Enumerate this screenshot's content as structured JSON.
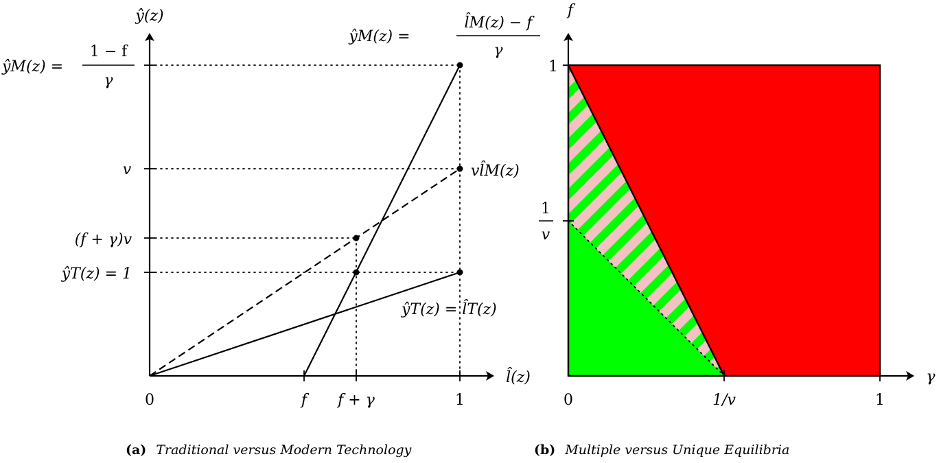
{
  "panel_a": {
    "caption_tag": "(a)",
    "caption_text": "Traditional versus Modern Technology",
    "y_axis_label": "ŷ(z)",
    "x_axis_label": "l̂(z)",
    "x_ticks": [
      "0",
      "f",
      "f + γ",
      "1"
    ],
    "y_labels": {
      "top_lhs": "ŷM(z) =",
      "top_num": "1 − f",
      "top_den": "γ",
      "v": "v",
      "fgv": "(f + γ)v",
      "yt": "ŷT(z) = 1"
    },
    "curve_labels": {
      "modern_lhs": "ŷM(z) =",
      "modern_num": "l̂M(z) − f",
      "modern_den": "γ",
      "vl": "vl̂M(z)",
      "trad": "ŷT(z) = l̂T(z)"
    }
  },
  "panel_b": {
    "caption_tag": "(b)",
    "caption_text": "Multiple versus Unique Equilibria",
    "y_axis_label": "f",
    "x_axis_label": "γ",
    "x_ticks": [
      "0",
      "1/v",
      "1"
    ],
    "y_ticks": {
      "one": "1",
      "frac_num": "1",
      "frac_den": "v"
    }
  },
  "colors": {
    "red": "#ff0000",
    "green": "#00ff00",
    "pink": "#f4c2c2"
  }
}
